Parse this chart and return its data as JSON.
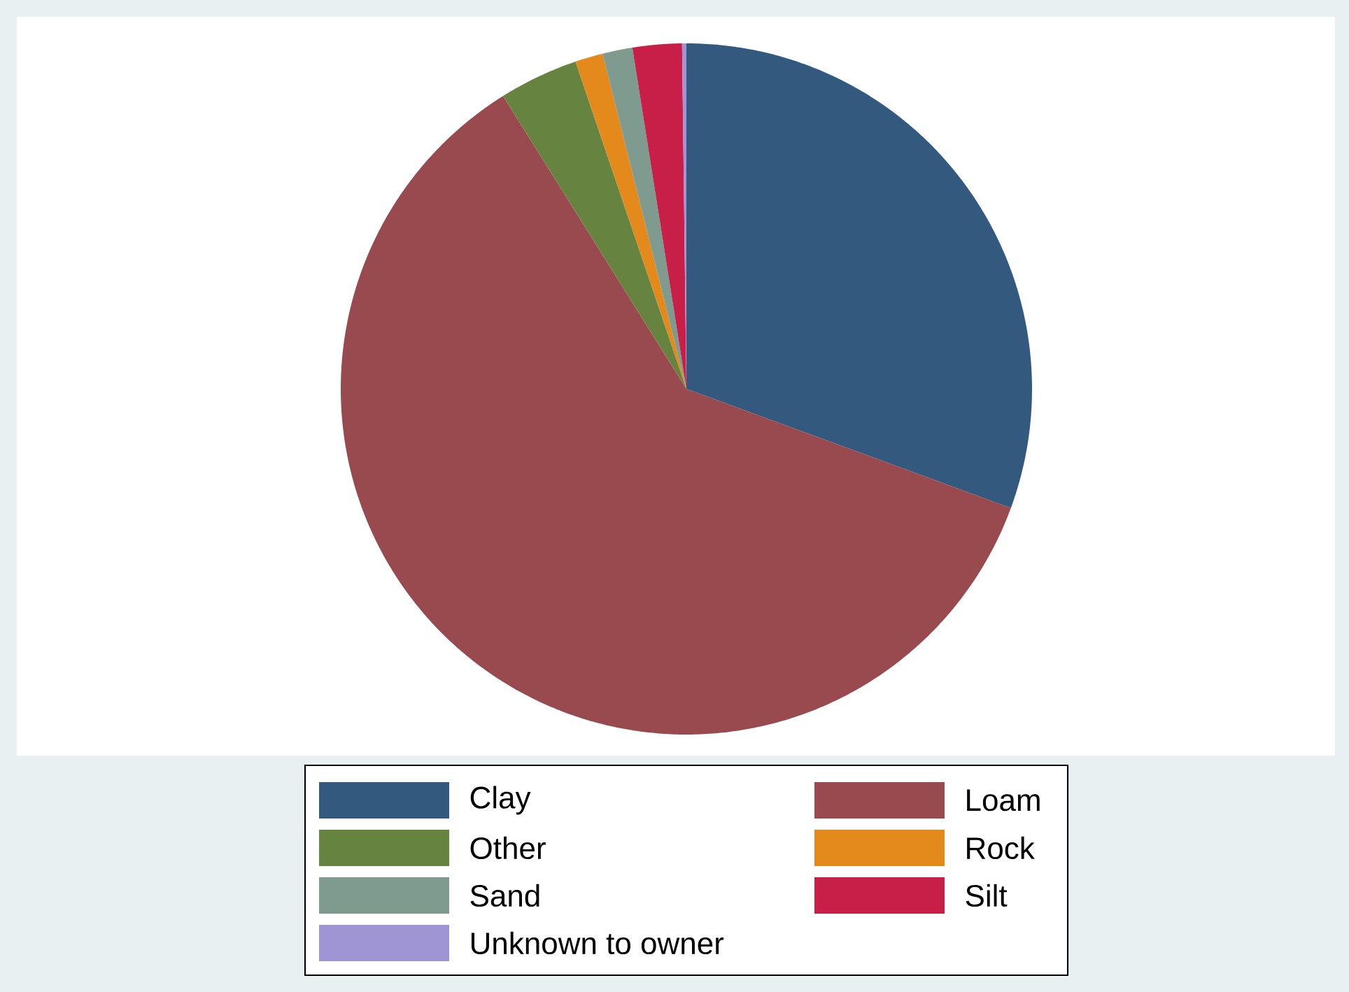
{
  "chart_data": {
    "type": "pie",
    "categories": [
      "Clay",
      "Loam",
      "Other",
      "Rock",
      "Sand",
      "Silt",
      "Unknown to owner"
    ],
    "values": [
      30.6,
      60.5,
      3.7,
      1.3,
      1.4,
      2.3,
      0.2
    ],
    "colors": [
      "#335a7e",
      "#994a4f",
      "#66843f",
      "#e4891c",
      "#7f9a8f",
      "#c81f48",
      "#a095d4"
    ],
    "legend": "bottom"
  }
}
